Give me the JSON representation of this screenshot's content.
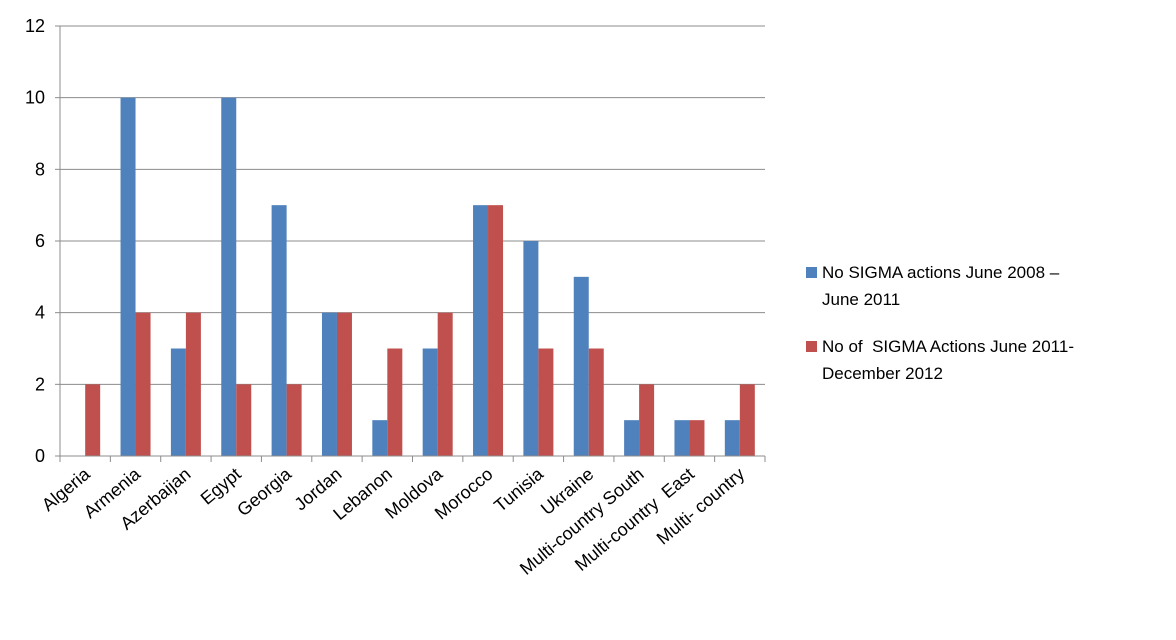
{
  "chart_data": {
    "type": "bar",
    "categories": [
      "Algeria",
      "Armenia",
      "Azerbaijan",
      "Egypt",
      "Georgia",
      "Jordan",
      "Lebanon",
      "Moldova",
      "Morocco",
      "Tunisia",
      "Ukraine",
      "Multi-country South",
      "Multi-country  East",
      "Multi- country"
    ],
    "series": [
      {
        "name": "No SIGMA actions June 2008 – June 2011",
        "legend_lines": [
          "No SIGMA actions June 2008 –",
          "June 2011"
        ],
        "color": "#4F81BD",
        "values": [
          0,
          10,
          3,
          10,
          7,
          4,
          1,
          3,
          7,
          6,
          5,
          1,
          1,
          1
        ]
      },
      {
        "name": "No of  SIGMA Actions June 2011-December 2012",
        "legend_lines": [
          "No of  SIGMA Actions June 2011-",
          "December 2012"
        ],
        "color": "#C0504D",
        "values": [
          2,
          4,
          4,
          2,
          2,
          4,
          3,
          4,
          7,
          3,
          3,
          2,
          1,
          2
        ]
      }
    ],
    "ylim": [
      0,
      12
    ],
    "yticks": [
      0,
      2,
      4,
      6,
      8,
      10,
      12
    ],
    "ytick_labels": [
      "0",
      "2",
      "4",
      "6",
      "8",
      "10",
      "12"
    ],
    "grid": true,
    "legend_position": "right",
    "title": "",
    "xlabel": "",
    "ylabel": ""
  }
}
